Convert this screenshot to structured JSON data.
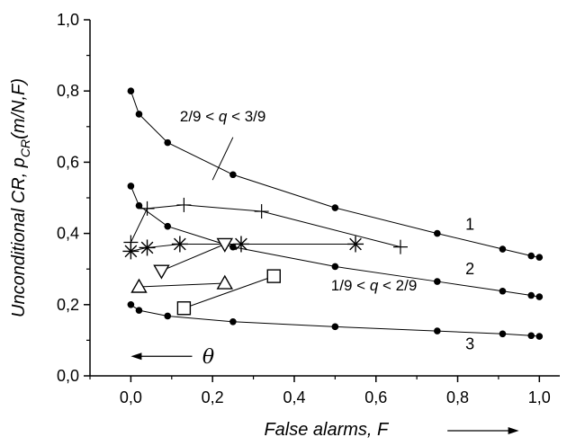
{
  "chart_data": {
    "type": "scatter",
    "xlabel": "False alarms, F",
    "ylabel": "Unconditional CR, p_CR(m/N,F)",
    "xlim": [
      -0.1,
      1.05
    ],
    "ylim": [
      0.0,
      1.0
    ],
    "x_ticks": [
      "0,0",
      "0,2",
      "0,4",
      "0,6",
      "0,8",
      "1,0"
    ],
    "y_ticks": [
      "0,0",
      "0,2",
      "0,4",
      "0,6",
      "0,8",
      "1,0"
    ],
    "series": [
      {
        "marker": "dot",
        "x": [
          0.0,
          0.02,
          0.09,
          0.25,
          0.5,
          0.75,
          0.91,
          0.98,
          1.0
        ],
        "y": [
          0.8,
          0.735,
          0.655,
          0.565,
          0.472,
          0.4,
          0.356,
          0.337,
          0.333
        ]
      },
      {
        "marker": "dot",
        "x": [
          0.0,
          0.02,
          0.09,
          0.25,
          0.5,
          0.75,
          0.91,
          0.98,
          1.0
        ],
        "y": [
          0.533,
          0.478,
          0.42,
          0.362,
          0.307,
          0.265,
          0.238,
          0.226,
          0.222
        ]
      },
      {
        "marker": "dot",
        "x": [
          0.0,
          0.02,
          0.09,
          0.25,
          0.5,
          0.75,
          0.91,
          0.98,
          1.0
        ],
        "y": [
          0.2,
          0.184,
          0.168,
          0.152,
          0.138,
          0.126,
          0.118,
          0.113,
          0.111
        ]
      },
      {
        "marker": "plus",
        "x": [
          0.0,
          0.04,
          0.13,
          0.32,
          0.66
        ],
        "y": [
          0.375,
          0.47,
          0.48,
          0.462,
          0.362
        ]
      },
      {
        "marker": "asterisk",
        "x": [
          0.0,
          0.04,
          0.12,
          0.27,
          0.55
        ],
        "y": [
          0.35,
          0.36,
          0.37,
          0.37,
          0.37
        ]
      },
      {
        "marker": "triangle-down",
        "x": [
          0.075,
          0.23
        ],
        "y": [
          0.295,
          0.37
        ]
      },
      {
        "marker": "triangle-up",
        "x": [
          0.02,
          0.23
        ],
        "y": [
          0.25,
          0.26
        ]
      },
      {
        "marker": "square",
        "x": [
          0.13,
          0.35
        ],
        "y": [
          0.19,
          0.28
        ]
      }
    ],
    "curve_labels": [
      {
        "text": "1",
        "x": 0.83,
        "y": 0.41
      },
      {
        "text": "2",
        "x": 0.83,
        "y": 0.285
      },
      {
        "text": "3",
        "x": 0.83,
        "y": 0.075
      }
    ],
    "annotations": [
      {
        "id": "upper",
        "prefix": "2/9 < ",
        "var": "q",
        "suffix": " < 3/9",
        "x": 0.12,
        "y": 0.715
      },
      {
        "id": "lower",
        "prefix": "1/9 < ",
        "var": "q",
        "suffix": " < 2/9",
        "x": 0.49,
        "y": 0.24
      }
    ],
    "theta_label": "θ",
    "theta_arrow": {
      "x_start": 0.15,
      "x_end": 0.0,
      "y": 0.055,
      "label_x": 0.175
    },
    "pointer_line": {
      "x1": 0.25,
      "y1": 0.67,
      "x2": 0.2,
      "y2": 0.55
    },
    "x_arrow": {
      "x1": 0.775,
      "x2": 0.95
    }
  }
}
